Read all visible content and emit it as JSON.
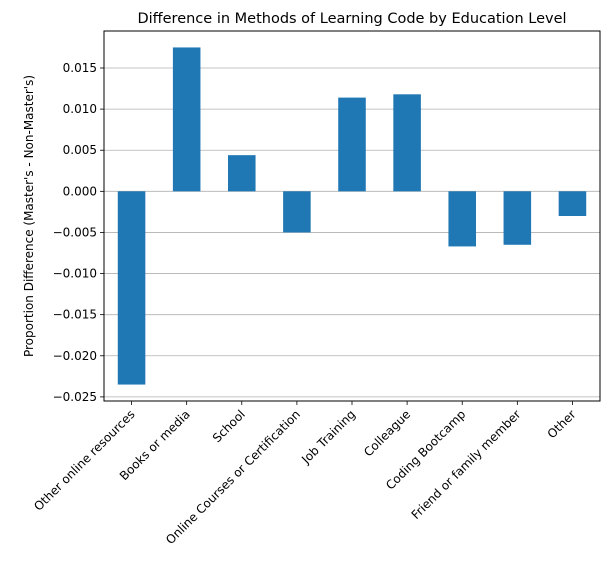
{
  "chart_data": {
    "type": "bar",
    "title": "Difference in Methods of Learning Code by Education Level",
    "xlabel": "",
    "ylabel": "Proportion Difference (Master's - Non-Master's)",
    "categories": [
      "Other online resources",
      "Books or media",
      "School",
      "Online Courses or Certification",
      "Job Training",
      "Colleague",
      "Coding Bootcamp",
      "Friend or family member",
      "Other"
    ],
    "values": [
      -0.0235,
      0.0175,
      0.0044,
      -0.005,
      0.0114,
      0.0118,
      -0.0067,
      -0.0065,
      -0.003
    ],
    "yticks": [
      -0.025,
      -0.02,
      -0.015,
      -0.01,
      -0.005,
      0.0,
      0.005,
      0.01,
      0.015
    ],
    "ytick_labels": [
      "−0.025",
      "−0.020",
      "−0.015",
      "−0.010",
      "−0.005",
      "0.000",
      "0.005",
      "0.010",
      "0.015"
    ],
    "ylim": [
      -0.0255,
      0.0195
    ],
    "grid": "y",
    "bar_color": "#1f77b4",
    "grid_color": "#b0b0b0"
  }
}
